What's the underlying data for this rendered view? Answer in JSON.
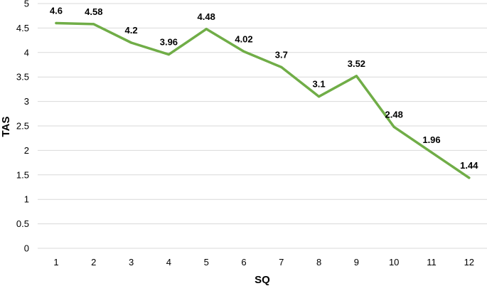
{
  "chart_data": {
    "type": "line",
    "title": "",
    "xlabel": "SQ",
    "ylabel": "TAS",
    "x": [
      1,
      2,
      3,
      4,
      5,
      6,
      7,
      8,
      9,
      10,
      11,
      12
    ],
    "x_tick_labels": [
      "1",
      "2",
      "3",
      "4",
      "5",
      "6",
      "7",
      "8",
      "9",
      "10",
      "11",
      "12"
    ],
    "y_tick_labels": [
      "0",
      "0.5",
      "1",
      "1.5",
      "2",
      "2.5",
      "3",
      "3.5",
      "4",
      "4.5",
      "5"
    ],
    "ylim": [
      0,
      5
    ],
    "grid": true,
    "legend": "none",
    "series": [
      {
        "values": [
          4.6,
          4.58,
          4.2,
          3.96,
          4.48,
          4.02,
          3.7,
          3.1,
          3.52,
          2.48,
          1.96,
          1.44
        ],
        "data_labels": [
          "4.6",
          "4.58",
          "4.2",
          "3.96",
          "4.48",
          "4.02",
          "3.7",
          "3.1",
          "3.52",
          "2.48",
          "1.96",
          "1.44"
        ],
        "color": "#70ad47"
      }
    ]
  }
}
